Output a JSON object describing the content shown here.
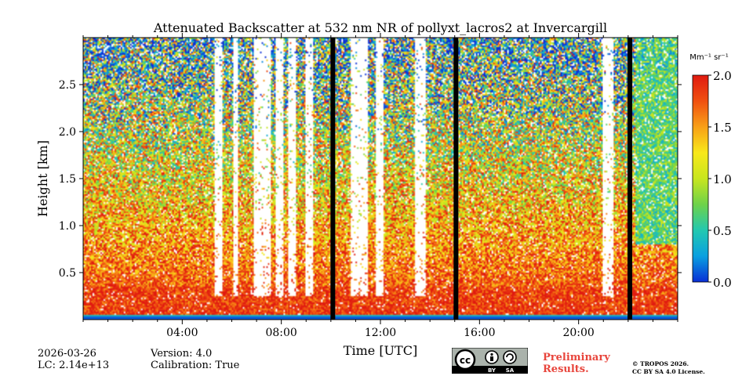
{
  "chart_data": {
    "type": "heatmap",
    "title": "Attenuated Backscatter at 532 nm NR of pollyxt_lacros2 at Invercargill",
    "xlabel": "Time [UTC]",
    "ylabel": "Height [km]",
    "x_range_hours": [
      0.0,
      24.0
    ],
    "ylim": [
      0.0,
      3.0
    ],
    "xticks": [
      {
        "value": 4,
        "label": "04:00"
      },
      {
        "value": 8,
        "label": "08:00"
      },
      {
        "value": 12,
        "label": "12:00"
      },
      {
        "value": 16,
        "label": "16:00"
      },
      {
        "value": 20,
        "label": "20:00"
      }
    ],
    "yticks": [
      {
        "value": 0.5,
        "label": "0.5"
      },
      {
        "value": 1.0,
        "label": "1.0"
      },
      {
        "value": 1.5,
        "label": "1.5"
      },
      {
        "value": 2.0,
        "label": "2.0"
      },
      {
        "value": 2.5,
        "label": "2.5"
      }
    ],
    "colorbar": {
      "unit": "Mm⁻¹ sr⁻¹",
      "vmin": 0.0,
      "vmax": 2.0,
      "ticks": [
        {
          "value": 0.0,
          "label": "0.0"
        },
        {
          "value": 0.5,
          "label": "0.5"
        },
        {
          "value": 1.0,
          "label": "1.0"
        },
        {
          "value": 1.5,
          "label": "1.5"
        },
        {
          "value": 2.0,
          "label": "2.0"
        }
      ],
      "colors": [
        "#0a2fd6",
        "#0aa0e0",
        "#22c8b0",
        "#6ed24a",
        "#c8e61e",
        "#f8e81a",
        "#f8a018",
        "#f05010",
        "#e01a10"
      ]
    },
    "data_gaps_hours": [
      10.08,
      15.05,
      22.07
    ],
    "clear_columns_hours": [
      [
        5.3,
        5.6
      ],
      [
        6.05,
        6.25
      ],
      [
        6.9,
        7.6
      ],
      [
        7.8,
        8.1
      ],
      [
        8.3,
        8.6
      ],
      [
        9.0,
        9.3
      ],
      [
        10.8,
        11.5
      ],
      [
        11.8,
        12.1
      ],
      [
        13.4,
        13.8
      ],
      [
        21.0,
        21.4
      ]
    ],
    "footer": {
      "date": "2026-03-26",
      "lc": "LC: 2.14e+13",
      "version": "Version: 4.0",
      "calibration": "Calibration: True",
      "cc_label": "cc",
      "cc_by": "BY",
      "cc_sa": "SA",
      "preliminary_line1": "Preliminary",
      "preliminary_line2": "Results.",
      "copyright_line1": "© TROPOS 2026.",
      "copyright_line2": "CC BY SA 4.0 License."
    }
  }
}
